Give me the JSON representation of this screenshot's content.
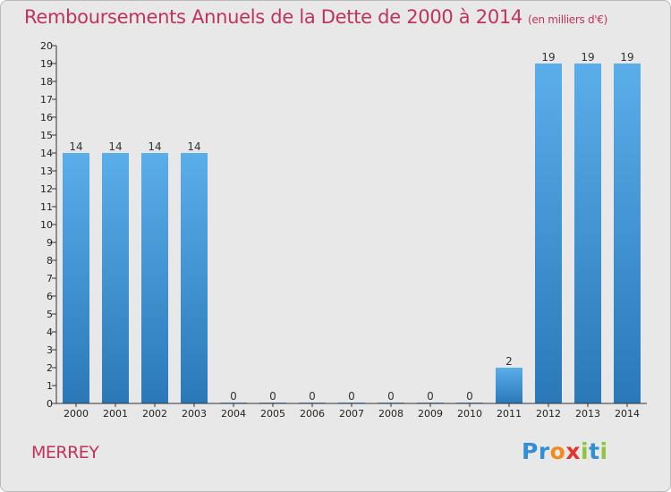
{
  "title": "Remboursements Annuels de la Dette de 2000 à 2014",
  "unit": "(en milliers d'€)",
  "location": "MERREY",
  "logo": {
    "letters": [
      "P",
      "r",
      "o",
      "x",
      "i",
      "t",
      "i"
    ],
    "colors": [
      "#2f8fd8",
      "#2f8fd8",
      "#f28a1c",
      "#e5322b",
      "#8cc63f",
      "#2f8fd8",
      "#8cc63f"
    ]
  },
  "colors": {
    "bar_top": "#5aaeea",
    "bar_bottom": "#2a78b8",
    "title": "#c0335c",
    "background": "#e8e8e8"
  },
  "chart_data": {
    "type": "bar",
    "categories": [
      "2000",
      "2001",
      "2002",
      "2003",
      "2004",
      "2005",
      "2006",
      "2007",
      "2008",
      "2009",
      "2010",
      "2011",
      "2012",
      "2013",
      "2014"
    ],
    "values": [
      14,
      14,
      14,
      14,
      0,
      0,
      0,
      0,
      0,
      0,
      0,
      2,
      19,
      19,
      19
    ],
    "data_labels": [
      "14",
      "14",
      "14",
      "14",
      "0",
      "0",
      "0",
      "0",
      "0",
      "0",
      "0",
      "2",
      "19",
      "19",
      "19"
    ],
    "yticks": [
      "0",
      "1",
      "2",
      "3",
      "4",
      "5",
      "6",
      "7",
      "8",
      "9",
      "10",
      "11",
      "12",
      "13",
      "14",
      "15",
      "16",
      "17",
      "18",
      "19",
      "20"
    ],
    "ylim": [
      0,
      20
    ],
    "grid": false
  }
}
